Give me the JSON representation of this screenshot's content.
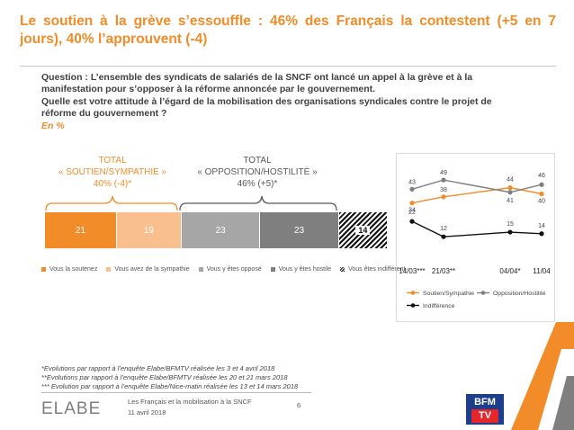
{
  "title": "Le soutien à la grève s’essouffle : 46% des Français la contestent (+5 en 7 jours), 40% l’approuvent (-4)",
  "question1": "Question : L’ensemble des syndicats de salariés de la SNCF ont lancé un appel à la grève et à la manifestation pour s’opposer à la réforme annoncée par le gouvernement.",
  "question2": "Quelle est votre attitude à l’égard de la mobilisation des organisations syndicales contre le projet de réforme du gouvernement ?",
  "unit": "En %",
  "total_support": {
    "line1": "TOTAL",
    "line2": "« SOUTIEN/SYMPATHIE »",
    "line3": "40% (-4)*"
  },
  "total_oppose": {
    "line1": "TOTAL",
    "line2": "« OPPOSITION/HOSTILITÉ »",
    "line3": "46% (+5)*"
  },
  "colors": {
    "orange": "#f28c28",
    "light_orange": "#f9bf8f",
    "grey": "#a6a6a6",
    "dark_grey": "#7f7f7f",
    "black": "#111111"
  },
  "chart_data": [
    {
      "type": "bar",
      "stacked": true,
      "orientation": "horizontal",
      "series": [
        {
          "name": "Vous la soutenez",
          "value": 21,
          "color": "#f28c28"
        },
        {
          "name": "Vous avez de la sympathie",
          "value": 19,
          "color": "#f9bf8f"
        },
        {
          "name": "Vous y êtes opposé",
          "value": 23,
          "color": "#a6a6a6"
        },
        {
          "name": "Vous y êtes hostile",
          "value": 23,
          "color": "#7f7f7f"
        },
        {
          "name": "Vous êtes indifférent",
          "value": 14,
          "color": "hatched"
        }
      ],
      "legend": "bottom"
    },
    {
      "type": "line",
      "x": [
        "14/03***",
        "21/03**",
        "04/04*",
        "11/04"
      ],
      "series": [
        {
          "name": "Soutien/Sympathie",
          "values": [
            34,
            38,
            44,
            40
          ],
          "color": "#f28c28"
        },
        {
          "name": "Opposition/Hostilité",
          "values": [
            43,
            49,
            41,
            46
          ],
          "color": "#7f7f7f"
        },
        {
          "name": "Indifférence",
          "values": [
            22,
            12,
            15,
            14
          ],
          "color": "#111111"
        }
      ],
      "legend": "bottom"
    }
  ],
  "footnotes": [
    "*Evolutions par rapport à l’enquête Elabe/BFMTV réalisée les 3 et 4 avril 2018",
    "**Evolutions par rapport à l’enquête Elabe/BFMTV réalisée les 20 et 21 mars 2018",
    "*** Evolution par rapport à l’enquête Elabe/Nice-matin réalisée les 13 et 14 mars 2018"
  ],
  "footer": {
    "logo": "ELABE",
    "subtitle": "Les Français et la mobilisation à la SNCF",
    "date": "11 avril 2018",
    "page": "6",
    "partner_logo": "BFM TV"
  }
}
